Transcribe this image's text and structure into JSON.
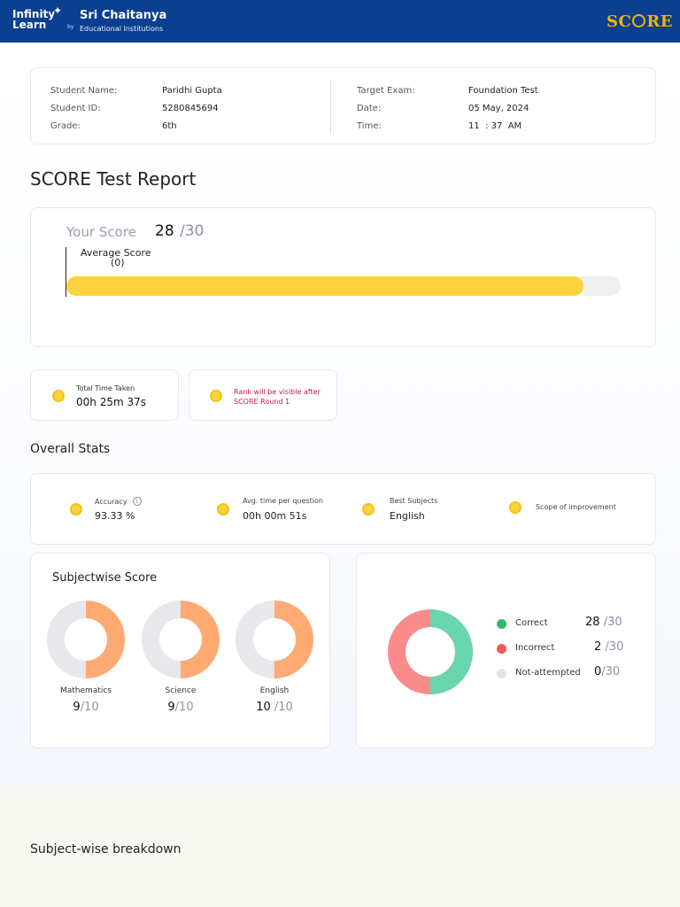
{
  "header": {
    "brand": {
      "line1": "Infinity",
      "line2": "Learn",
      "by": "by",
      "partner": "Sri Chaitanya",
      "partner_sub": "Educational Institutions"
    },
    "score_logo": {
      "left": "SC",
      "right": "RE"
    }
  },
  "student_info": {
    "name_label": "Student Name:",
    "name": "Paridhi Gupta",
    "id_label": "Student ID:",
    "id": "5280845694",
    "grade_label": "Grade:",
    "grade": "6th",
    "exam_label": "Target Exam:",
    "exam": "Foundation Test",
    "date_label": "Date:",
    "date": "05 May, 2024",
    "time_label": "Time:",
    "time": "11  : 37  AM"
  },
  "page_title": "SCORE Test Report",
  "score": {
    "label": "Your Score",
    "value": "28",
    "max": "/30",
    "average_label": "Average Score",
    "average_value": "(0)",
    "fill_fraction": 0.933
  },
  "time_taken": {
    "label": "Total Time Taken",
    "value": "00h 25m 37s"
  },
  "rank": {
    "text": "Rank will be visible after SCORE Round 1"
  },
  "overall_title": "Overall Stats",
  "overall": {
    "accuracy_label": "Accuracy",
    "accuracy_value": "93.33 %",
    "info_glyph": "i",
    "avg_time_label": "Avg. time per question",
    "avg_time_value": "00h 00m 51s",
    "best_label": "Best Subjects",
    "best_value": "English",
    "scope_label": "Scope of improvement"
  },
  "subjectwise": {
    "title": "Subjectwise Score",
    "subjects": [
      {
        "name": "Mathematics",
        "score": "9",
        "max": "/10",
        "fraction": 0.5
      },
      {
        "name": "Science",
        "score": "9",
        "max": "/10",
        "fraction": 0.5
      },
      {
        "name": "English",
        "score": "10",
        "max": "/10",
        "fraction": 0.5
      }
    ]
  },
  "summary": {
    "correct_label": "Correct",
    "correct_value": "28",
    "correct_max": "/30",
    "incorrect_label": "Incorrect",
    "incorrect_value": "2",
    "incorrect_max": "/30",
    "na_label": "Not-attempted",
    "na_value": "0",
    "na_max": "/30"
  },
  "breakdown_title": "Subject-wise breakdown",
  "colors": {
    "header_blue": "#0b3f8f",
    "score_gold": "#f4b400",
    "bar_yellow": "#fbd33c",
    "donut_orange": "#ffaa73",
    "donut_grey": "#e7e8ec",
    "correct": "#69d6ad",
    "incorrect": "#f98b8b",
    "not_attempted": "#e2e4e8",
    "rank_text": "#c2185b"
  }
}
